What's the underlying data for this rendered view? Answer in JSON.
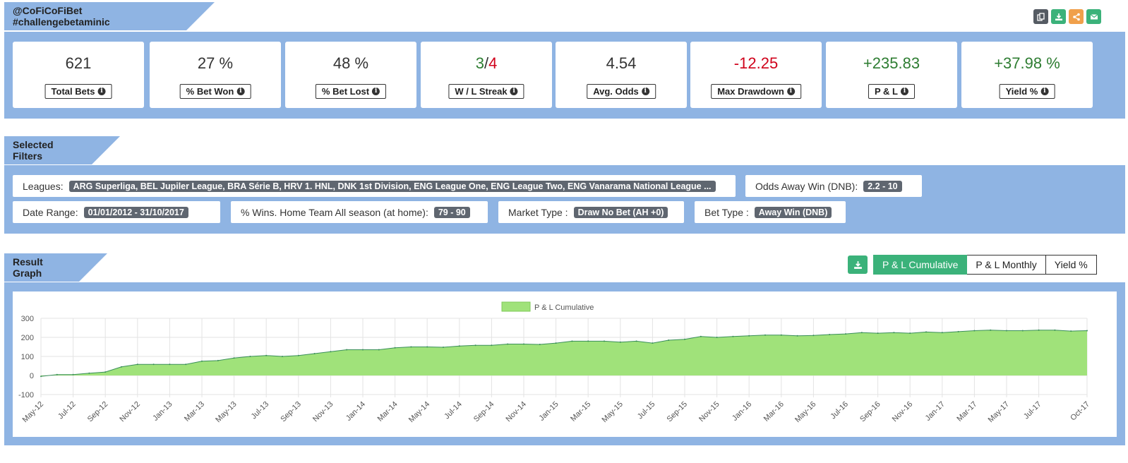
{
  "header": {
    "title": "@CoFiCoFiBet #challengebetaminic",
    "icons": [
      {
        "name": "copy-icon",
        "color": "#555b63"
      },
      {
        "name": "download-icon",
        "color": "#3bb27a"
      },
      {
        "name": "share-icon",
        "color": "#f0a04b"
      },
      {
        "name": "email-icon",
        "color": "#3bb27a"
      }
    ]
  },
  "stats": [
    {
      "value": "621",
      "label": "Total Bets"
    },
    {
      "value": "27 %",
      "label": "% Bet Won"
    },
    {
      "value": "48 %",
      "label": "% Bet Lost"
    },
    {
      "value_win": "3",
      "value_sep": "/",
      "value_loss": "4",
      "label": "W / L Streak"
    },
    {
      "value": "4.54",
      "label": "Avg. Odds"
    },
    {
      "value": "-12.25",
      "label": "Max Drawdown"
    },
    {
      "value": "+235.83",
      "label": "P & L"
    },
    {
      "value": "+37.98 %",
      "label": "Yield %"
    }
  ],
  "filters": {
    "title": "Selected Filters",
    "leagues": {
      "label": "Leagues:",
      "value": "ARG Superliga, BEL Jupiler League, BRA Série B, HRV 1. HNL, DNK 1st Division, ENG League One, ENG League Two, ENG Vanarama National League ..."
    },
    "odds": {
      "label": "Odds Away Win (DNB):",
      "value": "2.2 - 10"
    },
    "date": {
      "label": "Date Range:",
      "value": "01/01/2012 - 31/10/2017"
    },
    "wins": {
      "label": "% Wins. Home Team All season (at home):",
      "value": "79 - 90"
    },
    "market": {
      "label": "Market Type :",
      "value": "Draw No Bet (AH +0)"
    },
    "bettype": {
      "label": "Bet Type :",
      "value": "Away Win (DNB)"
    }
  },
  "graph": {
    "title": "Result Graph",
    "tabs": [
      "P & L Cumulative",
      "P & L Monthly",
      "Yield %"
    ],
    "active_tab": 0
  },
  "chart_data": {
    "type": "area",
    "legend": "P & L Cumulative",
    "legend_position": "top-center",
    "series_color": "#a0e27a",
    "line_color": "#3a8f5a",
    "ylim": [
      -100,
      300
    ],
    "yticks": [
      "300",
      "200",
      "100",
      "0",
      "-100"
    ],
    "grid": true,
    "x_tick_labels": [
      "May-12",
      "Jul-12",
      "Sep-12",
      "Nov-12",
      "Jan-13",
      "Mar-13",
      "May-13",
      "Jul-13",
      "Sep-13",
      "Nov-13",
      "Jan-14",
      "Mar-14",
      "May-14",
      "Jul-14",
      "Sep-14",
      "Nov-14",
      "Jan-15",
      "Mar-15",
      "May-15",
      "Jul-15",
      "Sep-15",
      "Nov-15",
      "Jan-16",
      "Mar-16",
      "May-16",
      "Jul-16",
      "Sep-16",
      "Nov-16",
      "Jan-17",
      "Mar-17",
      "May-17",
      "Jul-17",
      "Oct-17"
    ],
    "x": [
      "May-12",
      "Jun-12",
      "Jul-12",
      "Aug-12",
      "Sep-12",
      "Oct-12",
      "Nov-12",
      "Dec-12",
      "Jan-13",
      "Feb-13",
      "Mar-13",
      "Apr-13",
      "May-13",
      "Jun-13",
      "Jul-13",
      "Aug-13",
      "Sep-13",
      "Oct-13",
      "Nov-13",
      "Dec-13",
      "Jan-14",
      "Feb-14",
      "Mar-14",
      "Apr-14",
      "May-14",
      "Jun-14",
      "Jul-14",
      "Aug-14",
      "Sep-14",
      "Oct-14",
      "Nov-14",
      "Dec-14",
      "Jan-15",
      "Feb-15",
      "Mar-15",
      "Apr-15",
      "May-15",
      "Jun-15",
      "Jul-15",
      "Aug-15",
      "Sep-15",
      "Oct-15",
      "Nov-15",
      "Dec-15",
      "Jan-16",
      "Feb-16",
      "Mar-16",
      "Apr-16",
      "May-16",
      "Jun-16",
      "Jul-16",
      "Aug-16",
      "Sep-16",
      "Oct-16",
      "Nov-16",
      "Dec-16",
      "Jan-17",
      "Feb-17",
      "Mar-17",
      "Apr-17",
      "May-17",
      "Jun-17",
      "Jul-17",
      "Aug-17",
      "Sep-17",
      "Oct-17"
    ],
    "values": [
      -5,
      5,
      5,
      12,
      18,
      45,
      58,
      58,
      58,
      58,
      75,
      78,
      92,
      100,
      105,
      100,
      105,
      115,
      125,
      135,
      135,
      135,
      145,
      150,
      150,
      148,
      155,
      158,
      158,
      165,
      165,
      163,
      170,
      180,
      180,
      180,
      175,
      180,
      170,
      185,
      190,
      205,
      200,
      205,
      208,
      212,
      212,
      208,
      210,
      215,
      218,
      225,
      222,
      225,
      222,
      228,
      225,
      230,
      235,
      238,
      235,
      235,
      238,
      238,
      233,
      235
    ]
  }
}
